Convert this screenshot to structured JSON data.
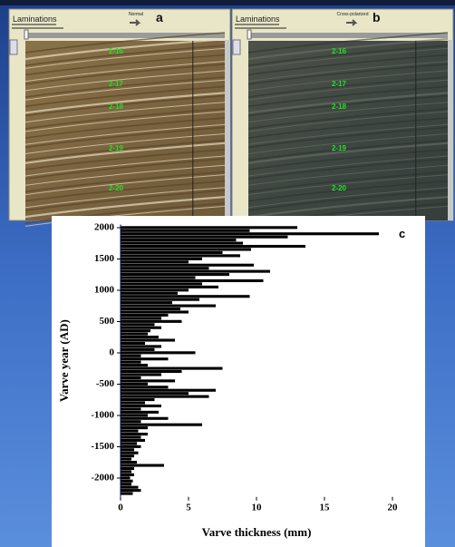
{
  "panels": [
    {
      "title": "Laminations",
      "mode": "Normal",
      "letter": "a",
      "depth_labels": [
        "2-16",
        "2-17",
        "2-18",
        "2-19",
        "2-20"
      ]
    },
    {
      "title": "Laminations",
      "mode": "Cross-polarized",
      "letter": "b",
      "depth_labels": [
        "2-16",
        "2-17",
        "2-18",
        "2-19",
        "2-20"
      ]
    }
  ],
  "chart_data": {
    "type": "bar",
    "orientation": "horizontal",
    "panel_label": "c",
    "xlabel": "Varve thickness (mm)",
    "ylabel": "Varve year (AD)",
    "color": "#000000",
    "axis_color": "#2b2bd0",
    "categories": [
      2000,
      1950,
      1900,
      1850,
      1800,
      1750,
      1700,
      1650,
      1600,
      1550,
      1500,
      1450,
      1400,
      1350,
      1300,
      1250,
      1200,
      1150,
      1100,
      1050,
      1000,
      950,
      900,
      850,
      800,
      750,
      700,
      650,
      600,
      550,
      500,
      450,
      400,
      350,
      300,
      250,
      200,
      150,
      100,
      50,
      0,
      -50,
      -100,
      -150,
      -200,
      -250,
      -300,
      -350,
      -400,
      -450,
      -500,
      -550,
      -600,
      -650,
      -700,
      -750,
      -800,
      -850,
      -900,
      -950,
      -1000,
      -1050,
      -1100,
      -1150,
      -1200,
      -1250,
      -1300,
      -1350,
      -1400,
      -1450,
      -1500,
      -1550,
      -1600,
      -1650,
      -1700,
      -1750,
      -1800,
      -1850,
      -1900,
      -1950,
      -2000,
      -2050,
      -2100,
      -2150,
      -2200,
      -2250
    ],
    "values": [
      13,
      9.5,
      19,
      12.3,
      8.5,
      9,
      13.6,
      9.6,
      7.5,
      8.8,
      6,
      5,
      9.8,
      6.5,
      11,
      8,
      5.5,
      10.5,
      6,
      7.2,
      5,
      4.2,
      9.5,
      5.8,
      3.8,
      7,
      4.4,
      5,
      3.5,
      3,
      4.5,
      2.5,
      3,
      2.2,
      2,
      2.8,
      4,
      1.8,
      3,
      2.5,
      5.5,
      1.5,
      3.5,
      1.5,
      2,
      7.5,
      4.5,
      3,
      1.5,
      4,
      2,
      3.5,
      7,
      5,
      6.5,
      2.5,
      1.8,
      3,
      1.5,
      2.8,
      2,
      3.5,
      1.5,
      6,
      2,
      1.3,
      2,
      1.5,
      1.8,
      1.2,
      1.5,
      1,
      1.3,
      1,
      0.8,
      1.2,
      3.2,
      1,
      0.8,
      1,
      0.7,
      0.9,
      0.8,
      1.3,
      1.5,
      0.9
    ],
    "xlim": [
      0,
      20
    ],
    "xticks": [
      0,
      5,
      10,
      15,
      20
    ],
    "ylim": [
      -2300,
      2050
    ],
    "yticks": [
      -2000,
      -1500,
      -1000,
      -500,
      0,
      500,
      1000,
      1500,
      2000
    ]
  }
}
